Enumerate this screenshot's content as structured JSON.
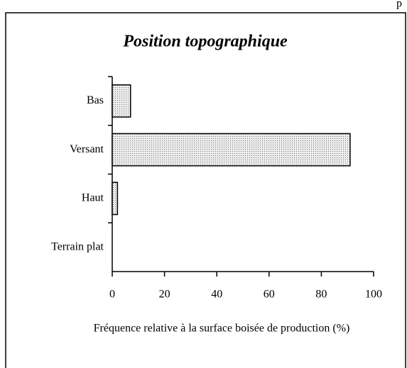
{
  "corner_text": "p",
  "chart_data": {
    "type": "hbar",
    "title": "Position topographique",
    "categories": [
      "Bas",
      "Versant",
      "Haut",
      "Terrain plat"
    ],
    "values": [
      7,
      91,
      2,
      0
    ],
    "xlabel": "Fréquence relative à la surface boisée de production (%)",
    "xlim": [
      0,
      100
    ],
    "xticks": [
      0,
      20,
      40,
      60,
      80,
      100
    ],
    "color": "#d8d8d8"
  }
}
